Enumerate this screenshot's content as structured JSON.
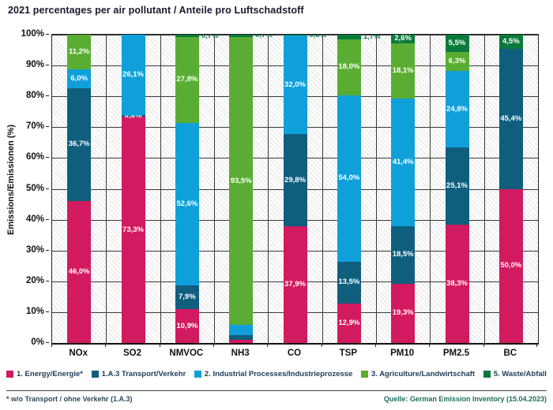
{
  "chart_data": {
    "type": "bar",
    "stacked": true,
    "title": "2021 percentages per air pollutant / Anteile pro Luftschadstoff",
    "ylabel": "Emissions/Emissionen (%)",
    "ylim": [
      0,
      100
    ],
    "y_ticks": [
      "0%",
      "10%",
      "20%",
      "30%",
      "40%",
      "50%",
      "60%",
      "70%",
      "80%",
      "90%",
      "100%"
    ],
    "grid": "horizontal lines every 10% plus vertical category separators on hatched background",
    "legend_position": "bottom",
    "categories": [
      "NOx",
      "SO2",
      "NMVOC",
      "NH3",
      "CO",
      "TSP",
      "PM10",
      "PM2.5",
      "BC"
    ],
    "series": [
      {
        "name": "1. Energy/Energie*",
        "color": "#d11a5f",
        "values": [
          46.0,
          73.3,
          10.9,
          1.0,
          37.9,
          12.9,
          19.3,
          38.3,
          50.0
        ],
        "labels": [
          "46,0%",
          "73,3%",
          "10,9%",
          "",
          "37,9%",
          "12,9%",
          "19,3%",
          "38,3%",
          "50,0%"
        ],
        "outside": [
          false,
          false,
          false,
          false,
          false,
          false,
          false,
          false,
          false
        ]
      },
      {
        "name": "1.A.3 Transport/Verkehr",
        "color": "#0f5e7e",
        "values": [
          36.7,
          0.6,
          7.9,
          1.6,
          29.8,
          13.5,
          18.5,
          25.1,
          45.4
        ],
        "labels": [
          "36,7%",
          "0,6%",
          "7,9%",
          "",
          "29,8%",
          "13,5%",
          "18,5%",
          "25,1%",
          "45,4%"
        ],
        "outside": [
          false,
          false,
          false,
          false,
          false,
          false,
          false,
          false,
          false
        ]
      },
      {
        "name": "2. Industrial Processes/Industrieprozesse",
        "color": "#0fa0da",
        "values": [
          6.0,
          26.1,
          52.6,
          3.2,
          32.0,
          54.0,
          41.4,
          24.8,
          0
        ],
        "labels": [
          "6,0%",
          "26,1%",
          "52,6%",
          "",
          "32,0%",
          "54,0%",
          "41,4%",
          "24,8%",
          ""
        ],
        "outside": [
          false,
          false,
          false,
          false,
          false,
          false,
          false,
          false,
          false
        ]
      },
      {
        "name": "3. Agriculture/Landwirtschaft",
        "color": "#5aad33",
        "values": [
          11.2,
          0,
          27.8,
          93.5,
          0,
          18.0,
          18.1,
          6.3,
          0
        ],
        "labels": [
          "11,2%",
          "",
          "27,8%",
          "93,5%",
          "",
          "18,0%",
          "18,1%",
          "6,3%",
          ""
        ],
        "outside": [
          false,
          false,
          false,
          false,
          false,
          false,
          false,
          false,
          false
        ]
      },
      {
        "name": "5. Waste/Abfall",
        "color": "#0a7a3c",
        "values": [
          0,
          0,
          0.7,
          0.7,
          0.3,
          1.7,
          2.6,
          5.5,
          4.5
        ],
        "labels": [
          "",
          "",
          "0,7%",
          "0,7%",
          "0,3%",
          "1,7%",
          "2,6%",
          "5,5%",
          "4,5%"
        ],
        "outside": [
          false,
          false,
          true,
          true,
          true,
          true,
          false,
          false,
          false
        ]
      }
    ]
  },
  "colors": {
    "energy": "#d11a5f",
    "transport": "#0f5e7e",
    "industrial": "#0fa0da",
    "agriculture": "#5aad33",
    "waste": "#0a7a3c",
    "outside_label": "#0c7a55",
    "legend_text": "#1e3c55"
  },
  "footer": {
    "footnote": "* w/o Transport / ohne Verkehr (1.A.3)",
    "source": "Quelle: German Emission Inventory (15.04.2023)"
  }
}
